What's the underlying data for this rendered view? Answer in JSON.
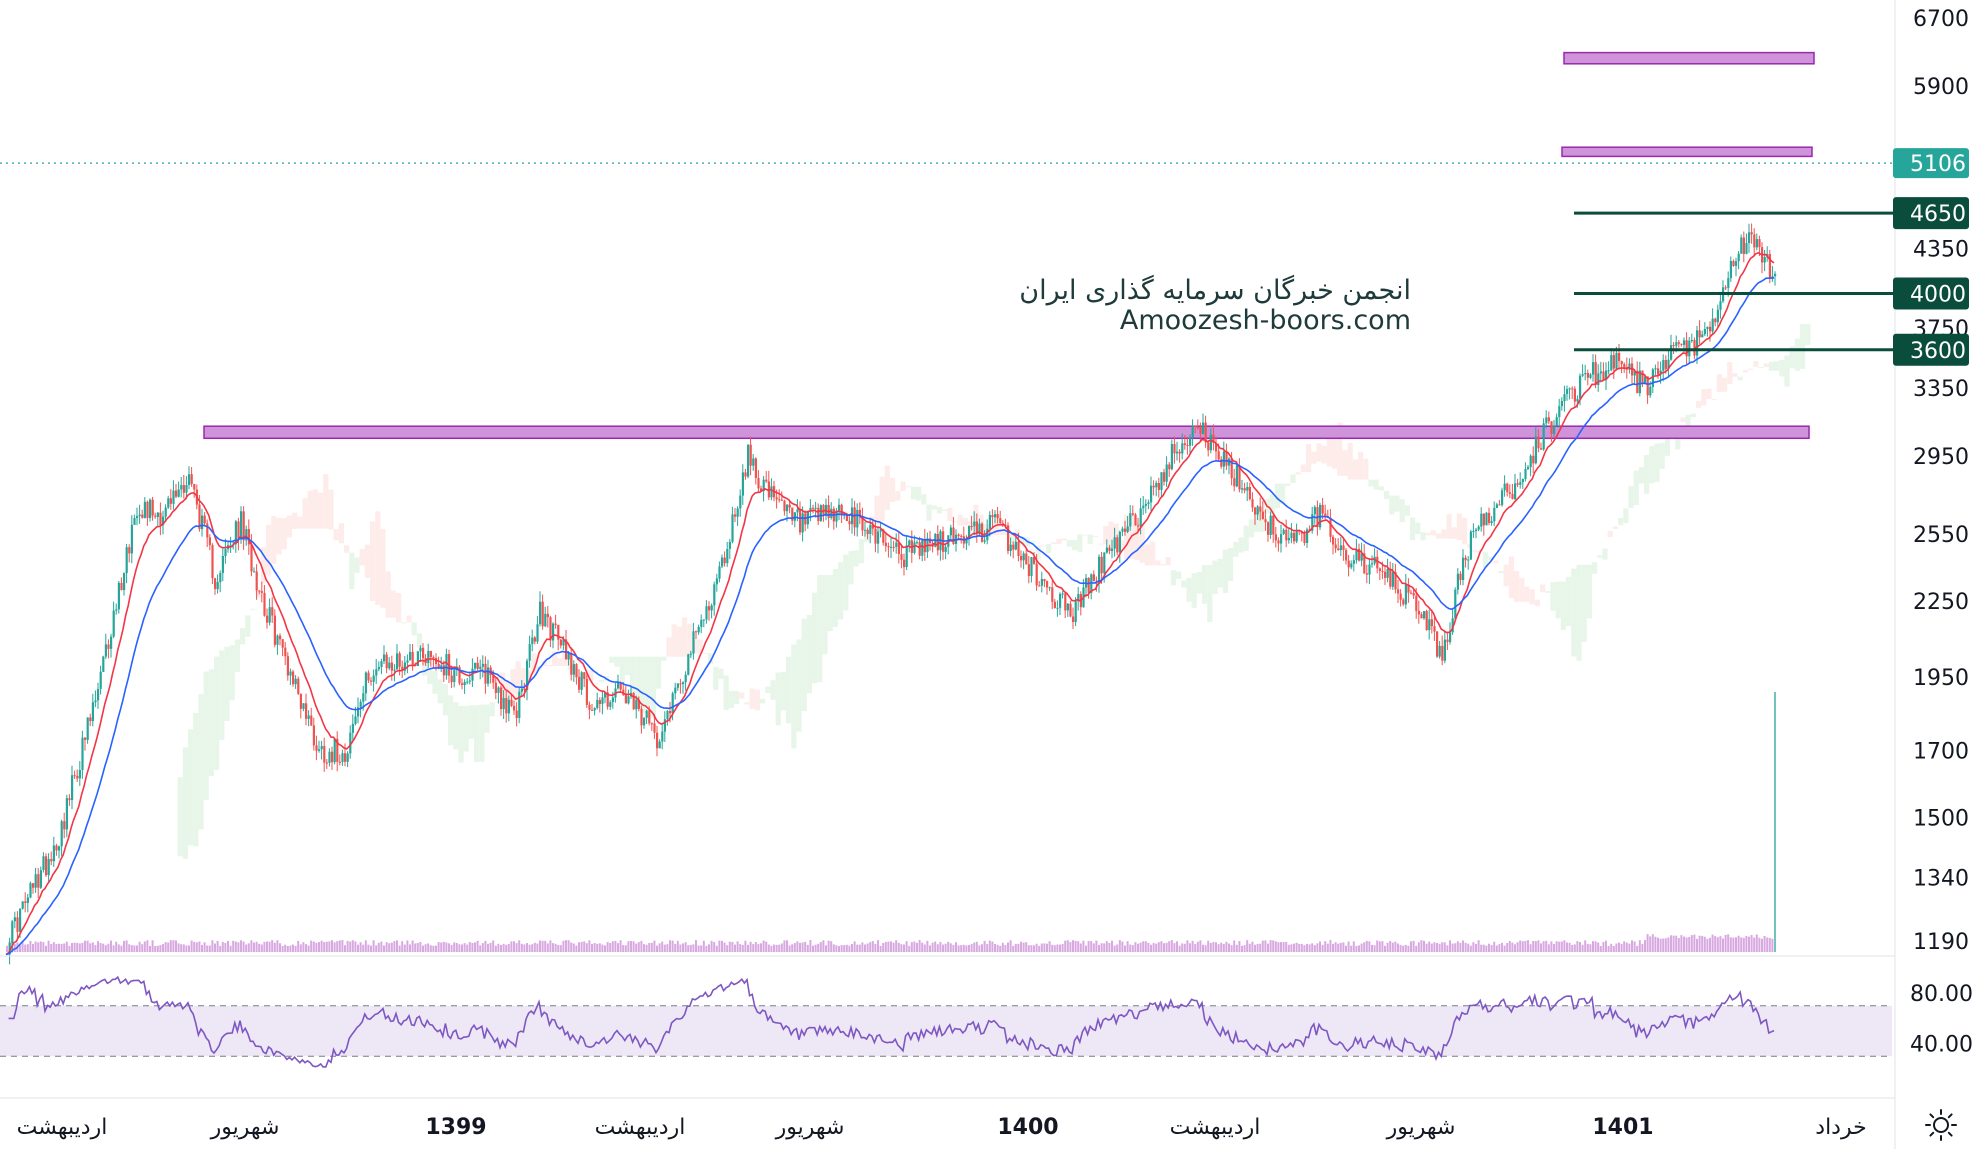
{
  "chart_data": {
    "type": "candlestick",
    "price_scale": {
      "ticks": [
        6700,
        5900,
        4350,
        3750,
        3350,
        2950,
        2550,
        2250,
        1950,
        1700,
        1500,
        1340,
        1190
      ],
      "scale": "log"
    },
    "last_price": {
      "value": "5106",
      "color": "#26a69a"
    },
    "horizontal_levels": [
      {
        "value": "4650",
        "color": "#0b4d3c"
      },
      {
        "value": "4000",
        "color": "#0b4d3c"
      },
      {
        "value": "3600",
        "color": "#0b4d3c"
      }
    ],
    "zones": [
      {
        "low": 6150,
        "high": 6280
      },
      {
        "low": 5170,
        "high": 5260
      },
      {
        "low": 3050,
        "high": 3120
      }
    ],
    "time_axis": [
      "اردیبهشت",
      "شهریور",
      "1399",
      "اردیبهشت",
      "شهریور",
      "1400",
      "اردیبهشت",
      "شهریور",
      "1401",
      "خرداد"
    ],
    "time_axis_bold": [
      false,
      false,
      true,
      false,
      false,
      true,
      false,
      false,
      true,
      false
    ],
    "closes_anchor": [
      [
        0,
        1190
      ],
      [
        20,
        1450
      ],
      [
        35,
        1900
      ],
      [
        50,
        2700
      ],
      [
        60,
        2650
      ],
      [
        70,
        2850
      ],
      [
        80,
        2350
      ],
      [
        90,
        2600
      ],
      [
        100,
        2200
      ],
      [
        110,
        1950
      ],
      [
        120,
        1700
      ],
      [
        130,
        1700
      ],
      [
        140,
        1980
      ],
      [
        150,
        2000
      ],
      [
        160,
        2050
      ],
      [
        175,
        1950
      ],
      [
        185,
        1970
      ],
      [
        195,
        1800
      ],
      [
        205,
        2200
      ],
      [
        215,
        2050
      ],
      [
        225,
        1850
      ],
      [
        235,
        1900
      ],
      [
        250,
        1750
      ],
      [
        265,
        2100
      ],
      [
        275,
        2400
      ],
      [
        285,
        2950
      ],
      [
        295,
        2700
      ],
      [
        305,
        2600
      ],
      [
        320,
        2650
      ],
      [
        335,
        2550
      ],
      [
        345,
        2450
      ],
      [
        355,
        2500
      ],
      [
        370,
        2550
      ],
      [
        380,
        2600
      ],
      [
        390,
        2450
      ],
      [
        400,
        2300
      ],
      [
        410,
        2200
      ],
      [
        420,
        2400
      ],
      [
        430,
        2550
      ],
      [
        440,
        2750
      ],
      [
        450,
        3000
      ],
      [
        458,
        3150
      ],
      [
        465,
        2950
      ],
      [
        475,
        2800
      ],
      [
        485,
        2600
      ],
      [
        495,
        2500
      ],
      [
        505,
        2650
      ],
      [
        515,
        2450
      ],
      [
        525,
        2400
      ],
      [
        535,
        2300
      ],
      [
        545,
        2200
      ],
      [
        552,
        2000
      ],
      [
        560,
        2450
      ],
      [
        570,
        2650
      ],
      [
        580,
        2800
      ],
      [
        590,
        3050
      ],
      [
        600,
        3300
      ],
      [
        610,
        3450
      ],
      [
        620,
        3500
      ],
      [
        630,
        3350
      ],
      [
        640,
        3550
      ],
      [
        655,
        3700
      ],
      [
        665,
        4300
      ],
      [
        670,
        4450
      ],
      [
        675,
        4250
      ],
      [
        680,
        4150
      ]
    ],
    "rsi": {
      "ticks": [
        "80.00",
        "40.00"
      ],
      "upper": 70,
      "lower": 30
    }
  },
  "watermark": {
    "line1": "انجمن خبرگان سرمایه گذاری ایران",
    "line2": "Amoozesh-boors.com"
  },
  "colors": {
    "up": "#26a69a",
    "down": "#ef5350",
    "zone_fill": "#ce93d8",
    "zone_border": "#9c27b0",
    "ema_fast": "#f23645",
    "ema_slow": "#2962ff",
    "rsi_line": "#7e57c2",
    "rsi_band": "#ede7f6",
    "cloud_bull": "#e8f5e9",
    "cloud_bear": "#fdecea",
    "volume": "#ce93d8"
  },
  "icons": {
    "settings": "sun-icon"
  }
}
